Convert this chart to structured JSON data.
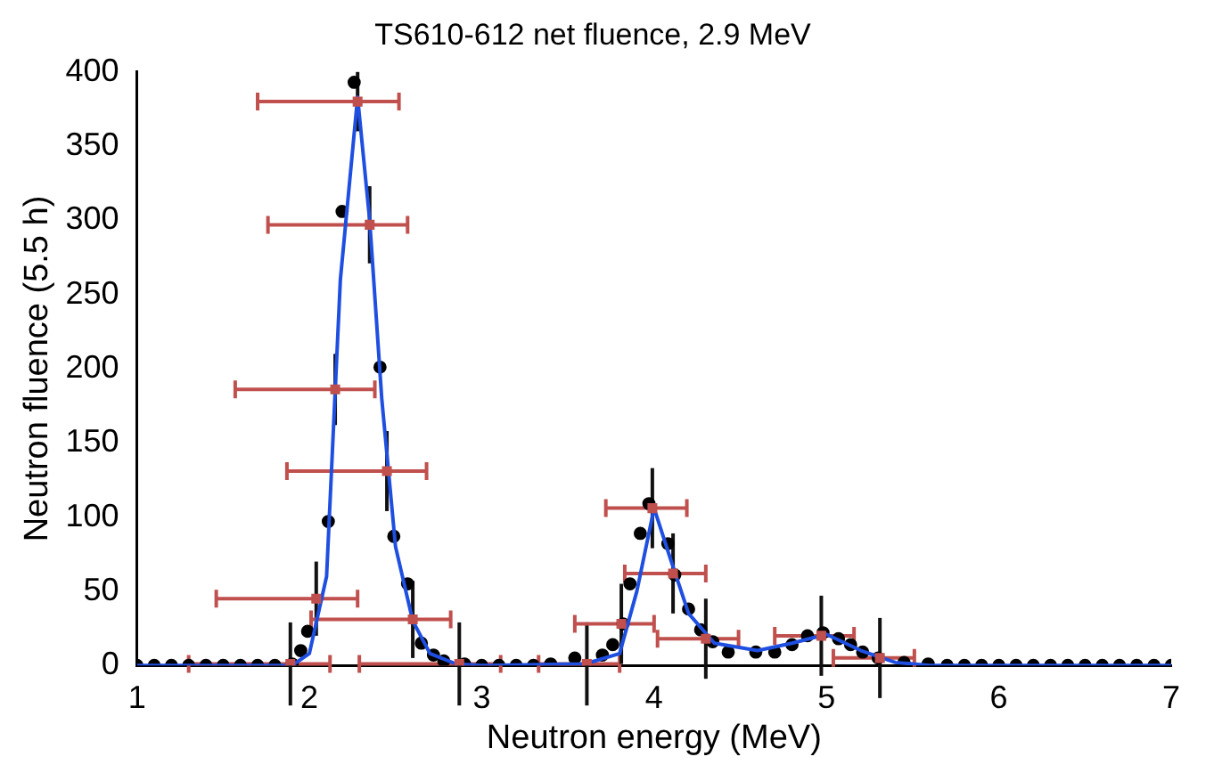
{
  "chart_data": {
    "type": "scatter",
    "title": "TS610-612 net fluence, 2.9 MeV",
    "xlabel": "Neutron energy (MeV)",
    "ylabel": "Neutron fluence (5.5 h)",
    "xlim": [
      1,
      7
    ],
    "xticks": [
      1,
      2,
      3,
      4,
      5,
      6,
      7
    ],
    "ylim": [
      0,
      400
    ],
    "yticks": [
      0,
      50,
      100,
      150,
      200,
      250,
      300,
      350,
      400
    ],
    "grid": false,
    "legend": false,
    "series": [
      {
        "marker": "circle",
        "color": "#000000",
        "x": [
          1.0,
          1.1,
          1.2,
          1.3,
          1.4,
          1.5,
          1.6,
          1.7,
          1.8,
          1.9,
          1.95,
          1.99,
          2.11,
          2.19,
          2.26,
          2.41,
          2.49,
          2.57,
          2.65,
          2.72,
          2.78,
          2.9,
          3.0,
          3.1,
          3.2,
          3.3,
          3.4,
          3.54,
          3.7,
          3.76,
          3.82,
          3.86,
          3.92,
          3.97,
          4.08,
          4.12,
          4.2,
          4.27,
          4.34,
          4.43,
          4.59,
          4.7,
          4.8,
          4.89,
          4.98,
          5.07,
          5.14,
          5.21,
          5.3,
          5.45,
          5.59,
          5.7,
          5.8,
          5.9,
          6.0,
          6.1,
          6.2,
          6.3,
          6.4,
          6.5,
          6.6,
          6.7,
          6.8,
          6.9,
          7.0
        ],
        "values": [
          0,
          0,
          0,
          0,
          0,
          0,
          0,
          0,
          0,
          1,
          10,
          23,
          97,
          306,
          393,
          201,
          87,
          55,
          15,
          7,
          3,
          1,
          0,
          0,
          0,
          0,
          1,
          5,
          7,
          14,
          28,
          55,
          89,
          109,
          82,
          61,
          38,
          24,
          16,
          9,
          9,
          9,
          14,
          20,
          22,
          18,
          14,
          9,
          5,
          2,
          1,
          0,
          0,
          0,
          0,
          0,
          0,
          0,
          0,
          0,
          0,
          0,
          0,
          0,
          0
        ]
      },
      {
        "type": "line",
        "marker": "none",
        "color": "#1f4fe0",
        "x": [
          1.0,
          1.9,
          2.0,
          2.1,
          2.18,
          2.28,
          2.35,
          2.42,
          2.5,
          2.6,
          2.7,
          2.85,
          3.0,
          3.6,
          3.8,
          3.9,
          4.0,
          4.1,
          4.2,
          4.35,
          4.6,
          4.8,
          5.0,
          5.2,
          5.4,
          5.6,
          7.0
        ],
        "values": [
          0,
          0,
          8,
          60,
          260,
          383,
          300,
          180,
          80,
          30,
          8,
          1,
          0,
          1,
          8,
          50,
          106,
          70,
          35,
          15,
          10,
          15,
          21,
          10,
          2,
          0,
          0
        ]
      },
      {
        "marker": "square",
        "color": "#c0504d",
        "x": [
          2.28,
          2.35,
          2.15,
          2.45,
          2.04,
          2.6,
          1.89,
          2.87,
          3.61,
          3.99,
          4.11,
          3.81,
          4.3,
          4.97,
          5.31
        ],
        "values": [
          380,
          297,
          186,
          131,
          45,
          31,
          1,
          1,
          1,
          106,
          62,
          28,
          18,
          20,
          5
        ],
        "xerrors": [
          [
            1.7,
            2.52
          ],
          [
            1.76,
            2.57
          ],
          [
            1.57,
            2.38
          ],
          [
            1.87,
            2.68
          ],
          [
            1.46,
            2.28
          ],
          [
            2.01,
            2.82
          ],
          [
            1.3,
            2.12
          ],
          [
            2.29,
            3.11
          ],
          [
            3.33,
            3.8
          ],
          [
            3.72,
            4.19
          ],
          [
            3.83,
            4.3
          ],
          [
            3.54,
            4.0
          ],
          [
            4.02,
            4.49
          ],
          [
            4.7,
            5.16
          ],
          [
            5.04,
            5.51
          ]
        ],
        "errors": [
          20,
          26,
          24,
          27,
          25,
          26,
          28,
          28,
          28,
          27,
          27,
          27,
          27,
          27,
          27
        ]
      }
    ]
  }
}
